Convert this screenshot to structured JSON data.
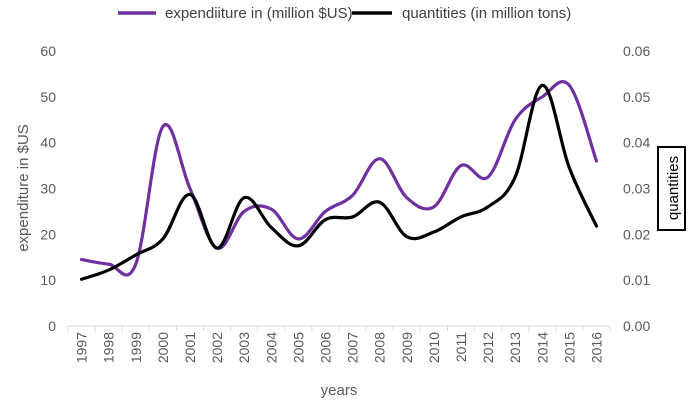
{
  "chart_data": {
    "type": "line",
    "xlabel": "years",
    "ylabel": "expenditure in $US",
    "y2label": "quantities",
    "x": [
      "1997",
      "1998",
      "1999",
      "2000",
      "2001",
      "2002",
      "2003",
      "2004",
      "2005",
      "2006",
      "2007",
      "2008",
      "2009",
      "2010",
      "2011",
      "2012",
      "2013",
      "2014",
      "2015",
      "2016"
    ],
    "ylim": [
      0,
      60
    ],
    "y2lim": [
      0,
      0.06
    ],
    "yticks": [
      "0",
      "10",
      "20",
      "30",
      "40",
      "50",
      "60"
    ],
    "y2ticks": [
      "0.00",
      "0.01",
      "0.02",
      "0.03",
      "0.04",
      "0.05",
      "0.06"
    ],
    "legend_position": "top",
    "grid": false,
    "series": [
      {
        "name": "expendiiture  in (million $US)",
        "axis": "left",
        "color": "#7030A0",
        "values": [
          14.5,
          13.5,
          13.5,
          43.5,
          30,
          17,
          25,
          25.5,
          19,
          25,
          28.5,
          36.5,
          28,
          26,
          35,
          32.5,
          45,
          50,
          52.5,
          36
        ]
      },
      {
        "name": "quantities  (in million tons)",
        "axis": "right",
        "color": "#000000",
        "values": [
          0.0102,
          0.0122,
          0.0155,
          0.019,
          0.0287,
          0.017,
          0.028,
          0.0215,
          0.0175,
          0.0232,
          0.0238,
          0.027,
          0.0195,
          0.0205,
          0.0238,
          0.026,
          0.0325,
          0.0525,
          0.0345,
          0.0218
        ]
      }
    ]
  }
}
